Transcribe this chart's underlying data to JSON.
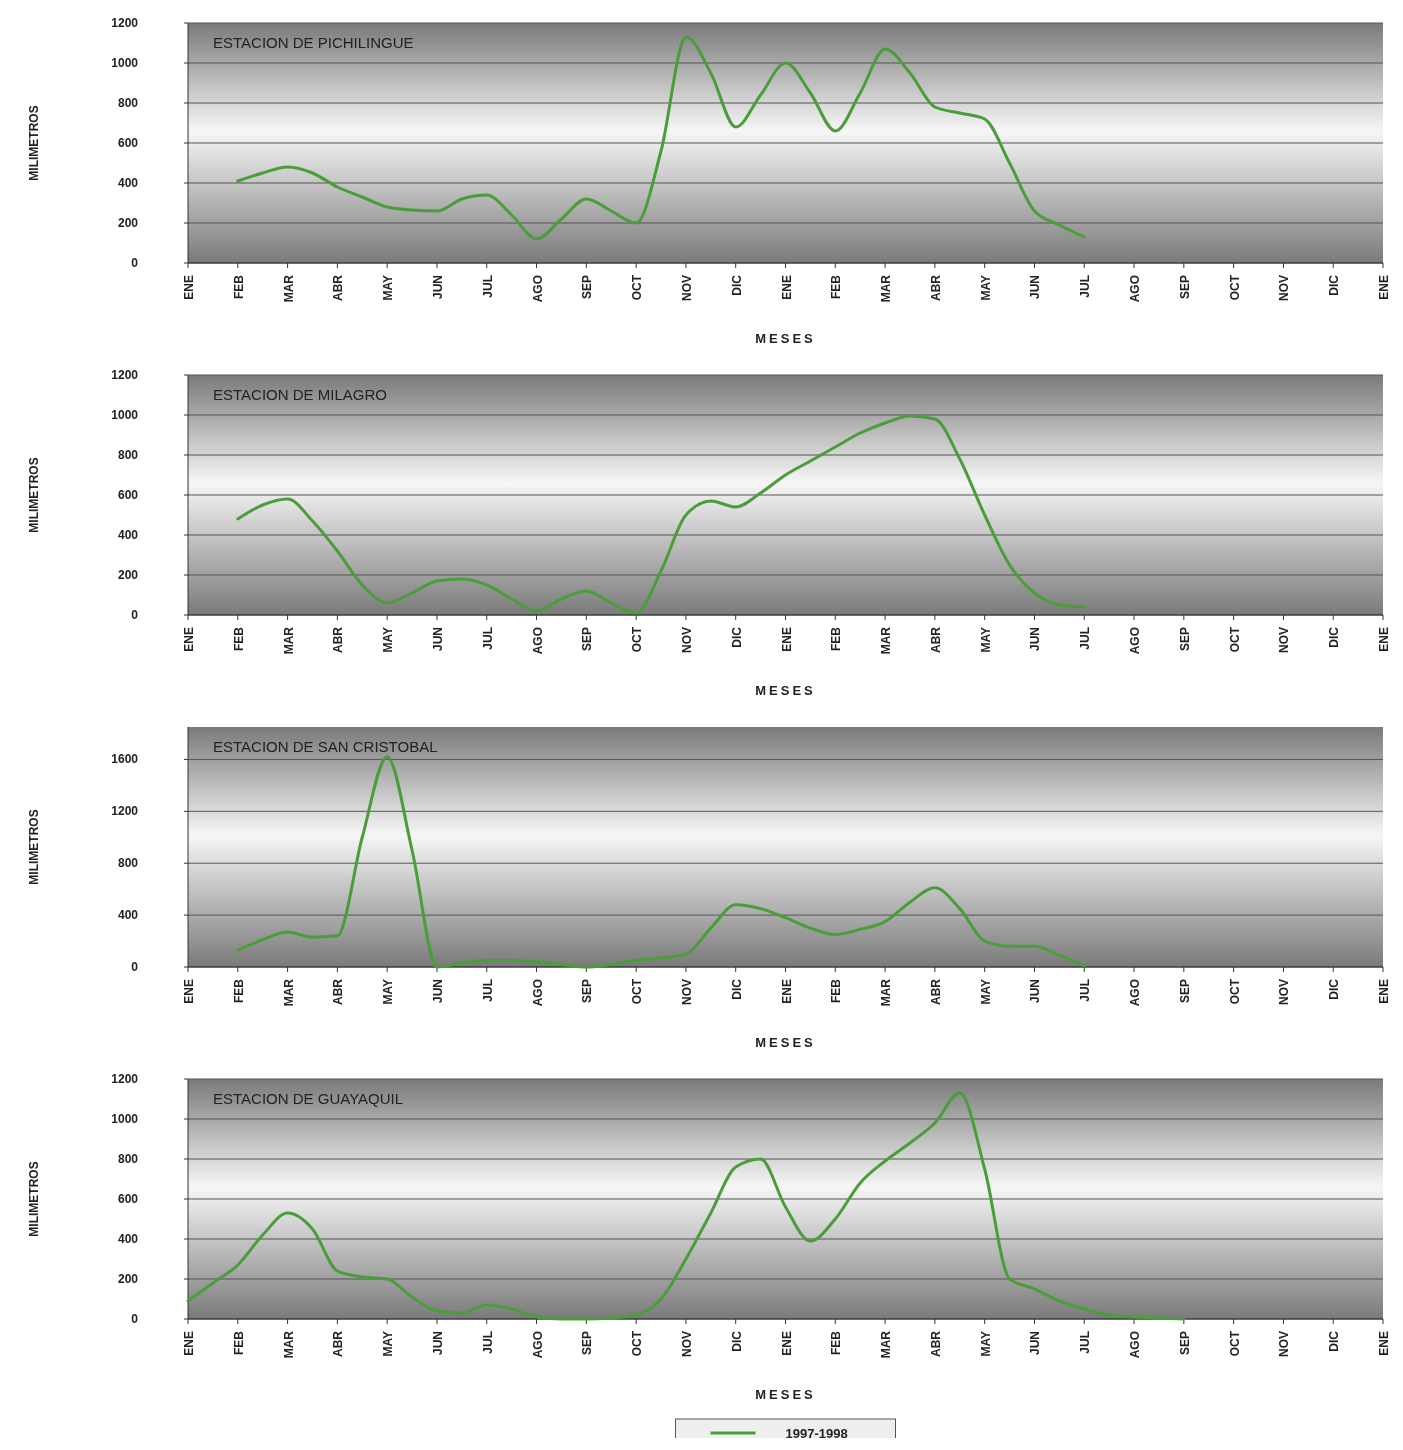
{
  "chart_data": [
    {
      "type": "line",
      "title": "ESTACION DE PICHILINGUE",
      "xlabel": "MESES",
      "ylabel": "MILIMETROS",
      "categories": [
        "ENE",
        null,
        "FEB",
        null,
        "MAR",
        null,
        "ABR",
        null,
        "MAY",
        null,
        "JUN",
        null,
        "JUL",
        null,
        "AGO",
        null,
        "SEP",
        null,
        "OCT",
        null,
        "NOV",
        null,
        "DIC",
        null,
        "ENE",
        null,
        "FEB",
        null,
        "MAR",
        null,
        "ABR",
        null,
        "MAY",
        null,
        "JUN",
        null,
        "JUL",
        null,
        "AGO",
        null,
        "SEP",
        null,
        "OCT",
        null,
        "NOV",
        null,
        "DIC",
        null,
        "ENE"
      ],
      "ylim": [
        0,
        1200
      ],
      "yticks": [
        0,
        200,
        400,
        600,
        800,
        1000,
        1200
      ],
      "grid": "y",
      "series": [
        {
          "color": "#4a9e3a",
          "values": [
            null,
            null,
            410,
            450,
            480,
            450,
            380,
            330,
            280,
            265,
            260,
            320,
            340,
            240,
            120,
            220,
            320,
            260,
            200,
            560,
            1130,
            950,
            680,
            840,
            1000,
            850,
            660,
            850,
            1070,
            950,
            780,
            750,
            720,
            500,
            260,
            190,
            130,
            null,
            null,
            null,
            null,
            null,
            null,
            null,
            null,
            null,
            null,
            null,
            null
          ]
        }
      ]
    },
    {
      "type": "line",
      "title": "ESTACION DE MILAGRO",
      "xlabel": "MESES",
      "ylabel": "MILIMETROS",
      "categories": [
        "ENE",
        null,
        "FEB",
        null,
        "MAR",
        null,
        "ABR",
        null,
        "MAY",
        null,
        "JUN",
        null,
        "JUL",
        null,
        "AGO",
        null,
        "SEP",
        null,
        "OCT",
        null,
        "NOV",
        null,
        "DIC",
        null,
        "ENE",
        null,
        "FEB",
        null,
        "MAR",
        null,
        "ABR",
        null,
        "MAY",
        null,
        "JUN",
        null,
        "JUL",
        null,
        "AGO",
        null,
        "SEP",
        null,
        "OCT",
        null,
        "NOV",
        null,
        "DIC",
        null,
        "ENE"
      ],
      "ylim": [
        0,
        1200
      ],
      "yticks": [
        0,
        200,
        400,
        600,
        800,
        1000,
        1200
      ],
      "grid": "y",
      "series": [
        {
          "color": "#4a9e3a",
          "values": [
            null,
            null,
            480,
            550,
            580,
            470,
            320,
            150,
            60,
            110,
            170,
            180,
            150,
            80,
            20,
            80,
            120,
            60,
            10,
            220,
            500,
            570,
            540,
            610,
            700,
            770,
            840,
            910,
            960,
            995,
            980,
            780,
            500,
            250,
            110,
            50,
            40,
            null,
            null,
            null,
            null,
            null,
            null,
            null,
            null,
            null,
            null,
            null,
            null
          ]
        }
      ]
    },
    {
      "type": "line",
      "title": "ESTACION DE SAN CRISTOBAL",
      "xlabel": "MESES",
      "ylabel": "MILIMETROS",
      "categories": [
        "ENE",
        null,
        "FEB",
        null,
        "MAR",
        null,
        "ABR",
        null,
        "MAY",
        null,
        "JUN",
        null,
        "JUL",
        null,
        "AGO",
        null,
        "SEP",
        null,
        "OCT",
        null,
        "NOV",
        null,
        "DIC",
        null,
        "ENE",
        null,
        "FEB",
        null,
        "MAR",
        null,
        "ABR",
        null,
        "MAY",
        null,
        "JUN",
        null,
        "JUL",
        null,
        "AGO",
        null,
        "SEP",
        null,
        "OCT",
        null,
        "NOV",
        null,
        "DIC",
        null,
        "ENE"
      ],
      "ylim": [
        0,
        1850
      ],
      "yticks": [
        0,
        400,
        800,
        1200,
        1600
      ],
      "grid": "y",
      "series": [
        {
          "color": "#4a9e3a",
          "values": [
            null,
            null,
            130,
            210,
            270,
            230,
            240,
            1000,
            1620,
            900,
            0,
            30,
            50,
            50,
            40,
            20,
            0,
            20,
            50,
            70,
            100,
            300,
            480,
            450,
            380,
            300,
            250,
            290,
            350,
            500,
            610,
            450,
            200,
            160,
            160,
            90,
            10,
            null,
            null,
            null,
            null,
            null,
            null,
            null,
            null,
            null,
            null,
            null,
            null
          ]
        }
      ]
    },
    {
      "type": "line",
      "title": "ESTACION DE GUAYAQUIL",
      "xlabel": "MESES",
      "ylabel": "MILIMETROS",
      "categories": [
        "ENE",
        null,
        "FEB",
        null,
        "MAR",
        null,
        "ABR",
        null,
        "MAY",
        null,
        "JUN",
        null,
        "JUL",
        null,
        "AGO",
        null,
        "SEP",
        null,
        "OCT",
        null,
        "NOV",
        null,
        "DIC",
        null,
        "ENE",
        null,
        "FEB",
        null,
        "MAR",
        null,
        "ABR",
        null,
        "MAY",
        null,
        "JUN",
        null,
        "JUL",
        null,
        "AGO",
        null,
        "SEP",
        null,
        "OCT",
        null,
        "NOV",
        null,
        "DIC",
        null,
        "ENE"
      ],
      "ylim": [
        0,
        1200
      ],
      "yticks": [
        0,
        200,
        400,
        600,
        800,
        1000,
        1200
      ],
      "grid": "y",
      "legend": "bottom",
      "series": [
        {
          "name": "1997-1998",
          "color": "#4a9e3a",
          "values": [
            90,
            180,
            270,
            420,
            530,
            450,
            240,
            210,
            200,
            110,
            40,
            30,
            70,
            50,
            10,
            0,
            0,
            5,
            20,
            100,
            300,
            530,
            760,
            800,
            560,
            390,
            500,
            680,
            790,
            880,
            980,
            1130,
            750,
            200,
            150,
            90,
            50,
            20,
            10,
            5,
            0,
            null,
            null,
            null,
            null,
            null,
            null,
            null,
            null
          ]
        }
      ]
    }
  ]
}
